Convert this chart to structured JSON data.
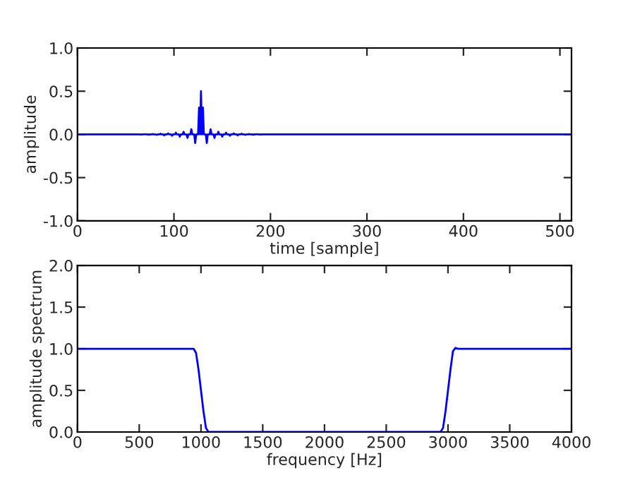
{
  "chart_data": [
    {
      "type": "line",
      "xlabel": "time [sample]",
      "ylabel": "amplitude",
      "xlim": [
        0,
        512
      ],
      "ylim": [
        -1,
        1
      ],
      "xticks": [
        0,
        100,
        200,
        300,
        400,
        500
      ],
      "yticks": [
        {
          "value": -1,
          "label": "-1.0"
        },
        {
          "value": -0.5,
          "label": "-0.5"
        },
        {
          "value": 0,
          "label": "0.0"
        },
        {
          "value": 0.5,
          "label": "0.5"
        },
        {
          "value": 1,
          "label": "1.0"
        }
      ],
      "grid": false,
      "legend": false,
      "series": [
        {
          "color": "#0000ff",
          "x": [
            0,
            64,
            65,
            66,
            67,
            68,
            69,
            70,
            71,
            72,
            73,
            74,
            75,
            76,
            77,
            78,
            79,
            80,
            81,
            82,
            83,
            84,
            85,
            86,
            87,
            88,
            89,
            90,
            91,
            92,
            93,
            94,
            95,
            96,
            97,
            98,
            99,
            100,
            101,
            102,
            103,
            104,
            105,
            106,
            107,
            108,
            109,
            110,
            111,
            112,
            113,
            114,
            115,
            116,
            117,
            118,
            119,
            120,
            121,
            122,
            123,
            124,
            125,
            126,
            127,
            128,
            129,
            130,
            131,
            132,
            133,
            134,
            135,
            136,
            137,
            138,
            139,
            140,
            141,
            142,
            143,
            144,
            145,
            146,
            147,
            148,
            149,
            150,
            151,
            152,
            153,
            154,
            155,
            156,
            157,
            158,
            159,
            160,
            161,
            162,
            163,
            164,
            165,
            166,
            167,
            168,
            169,
            170,
            171,
            172,
            173,
            174,
            175,
            176,
            177,
            178,
            179,
            180,
            181,
            182,
            183,
            184,
            185,
            186,
            187,
            188,
            189,
            190,
            191,
            192,
            511
          ],
          "values": [
            0,
            0,
            0,
            -0.002,
            0,
            0,
            0,
            0.003,
            0,
            0,
            0,
            -0.004,
            0,
            0,
            0,
            0.005,
            0,
            0,
            0,
            -0.006,
            0,
            0,
            0,
            0.008,
            0,
            0,
            0,
            -0.01,
            0,
            0,
            0,
            0.012,
            0,
            0,
            0,
            -0.015,
            0,
            0,
            0,
            0.02,
            0,
            0,
            0,
            -0.025,
            0,
            0,
            0,
            0.03,
            0,
            0,
            0,
            -0.04,
            0,
            0,
            0,
            0.06,
            0,
            0,
            0,
            -0.1,
            0,
            0,
            0,
            0.31,
            0,
            0.5,
            0,
            0.31,
            0,
            0,
            0,
            -0.1,
            0,
            0,
            0,
            0.06,
            0,
            0,
            0,
            -0.04,
            0,
            0,
            0,
            0.03,
            0,
            0,
            0,
            -0.025,
            0,
            0,
            0,
            0.02,
            0,
            0,
            0,
            -0.015,
            0,
            0,
            0,
            0.012,
            0,
            0,
            0,
            -0.01,
            0,
            0,
            0,
            0.008,
            0,
            0,
            0,
            -0.006,
            0,
            0,
            0,
            0.005,
            0,
            0,
            0,
            -0.004,
            0,
            0,
            0,
            0.003,
            0,
            0,
            0,
            -0.002,
            0,
            0,
            0
          ]
        }
      ]
    },
    {
      "type": "line",
      "xlabel": "frequency [Hz]",
      "ylabel": "amplitude spectrum",
      "xlim": [
        0,
        4000
      ],
      "ylim": [
        0,
        2
      ],
      "xticks": [
        0,
        500,
        1000,
        1500,
        2000,
        2500,
        3000,
        3500,
        4000
      ],
      "yticks": [
        {
          "value": 0,
          "label": "0.0"
        },
        {
          "value": 0.5,
          "label": "0.5"
        },
        {
          "value": 1,
          "label": "1.0"
        },
        {
          "value": 1.5,
          "label": "1.5"
        },
        {
          "value": 2,
          "label": "2.0"
        }
      ],
      "grid": false,
      "legend": false,
      "series": [
        {
          "color": "#0000ff",
          "x": [
            0,
            900,
            940,
            960,
            980,
            1000,
            1020,
            1040,
            1060,
            1080,
            2920,
            2940,
            2960,
            2980,
            3000,
            3020,
            3040,
            3060,
            3080,
            3100,
            4000
          ],
          "values": [
            1,
            1,
            1,
            0.95,
            0.75,
            0.5,
            0.25,
            0.05,
            0,
            0,
            0,
            0,
            0.05,
            0.25,
            0.5,
            0.75,
            0.97,
            1.01,
            1,
            1,
            1
          ]
        }
      ]
    }
  ]
}
